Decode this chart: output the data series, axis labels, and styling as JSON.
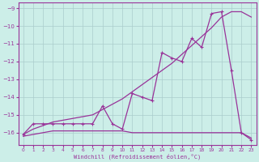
{
  "xlabel": "Windchill (Refroidissement éolien,°C)",
  "background_color": "#cceee8",
  "grid_color": "#aacccc",
  "line_color": "#993399",
  "x_hours": [
    0,
    1,
    2,
    3,
    4,
    5,
    6,
    7,
    8,
    9,
    10,
    11,
    12,
    13,
    14,
    15,
    16,
    17,
    18,
    19,
    20,
    21,
    22,
    23
  ],
  "windchill_values": [
    -16.1,
    -15.5,
    -15.5,
    -15.5,
    -15.5,
    -15.5,
    -15.5,
    -15.5,
    -14.5,
    -15.5,
    -15.8,
    -13.8,
    -14.0,
    -14.2,
    -11.5,
    -11.8,
    -12.0,
    -10.7,
    -11.2,
    -9.3,
    -9.2,
    -12.5,
    -16.0,
    -16.4
  ],
  "trend_values": [
    -16.1,
    -15.8,
    -15.6,
    -15.4,
    -15.3,
    -15.2,
    -15.1,
    -15.0,
    -14.7,
    -14.4,
    -14.1,
    -13.7,
    -13.3,
    -12.9,
    -12.5,
    -12.1,
    -11.6,
    -11.1,
    -10.6,
    -10.1,
    -9.5,
    -9.2,
    -9.2,
    -9.5
  ],
  "flat_values": [
    -16.2,
    -16.1,
    -16.0,
    -15.9,
    -15.9,
    -15.9,
    -15.9,
    -15.9,
    -15.9,
    -15.9,
    -15.9,
    -16.0,
    -16.0,
    -16.0,
    -16.0,
    -16.0,
    -16.0,
    -16.0,
    -16.0,
    -16.0,
    -16.0,
    -16.0,
    -16.0,
    -16.3
  ],
  "ylim": [
    -16.7,
    -8.7
  ],
  "xlim": [
    -0.5,
    23.5
  ],
  "yticks": [
    -9,
    -10,
    -11,
    -12,
    -13,
    -14,
    -15,
    -16
  ],
  "xticks": [
    0,
    1,
    2,
    3,
    4,
    5,
    6,
    7,
    8,
    9,
    10,
    11,
    12,
    13,
    14,
    15,
    16,
    17,
    18,
    19,
    20,
    21,
    22,
    23
  ]
}
